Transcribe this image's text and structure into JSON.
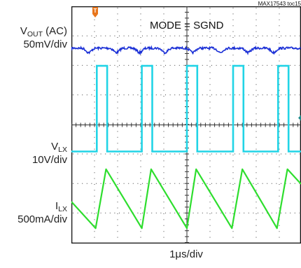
{
  "figure_id": "MAX17543 toc15",
  "mode_label": "MODE = SGND",
  "trigger_marker": "T",
  "time_scale": "1μs/div",
  "channels": {
    "vout": {
      "prefix": "V",
      "sub": "OUT",
      "suffix": " (AC)",
      "scale": "50mV/div",
      "color": "#1a2fd6"
    },
    "vlx": {
      "prefix": "V",
      "sub": "LX",
      "suffix": "",
      "scale": "10V/div",
      "color": "#22d4e6"
    },
    "ilx": {
      "prefix": "I",
      "sub": "LX",
      "suffix": "",
      "scale": "500mA/div",
      "color": "#2ede2e"
    }
  },
  "colors": {
    "trigger": "#e8761c",
    "grid": "#444444",
    "frame": "#111111"
  },
  "chart_data": {
    "type": "line",
    "title": "MODE = SGND",
    "xlabel": "1μs/div",
    "grid": true,
    "x_divisions": 10,
    "y_divisions": 8,
    "series": [
      {
        "name": "VOUT (AC)",
        "unit": "mV",
        "scale_per_div": 50,
        "offset_div": 2.6,
        "ripple_mV": 10,
        "dips_at_div": [
          0.75,
          1.95,
          2.95,
          4.05,
          5.25,
          6.45,
          7.65,
          8.75
        ]
      },
      {
        "name": "VLX",
        "unit": "V",
        "scale_per_div": 10,
        "offset_div": -0.9,
        "high_V": 29,
        "low_V": 0,
        "pulses_div": [
          [
            1.1,
            1.55
          ],
          [
            3.05,
            3.5
          ],
          [
            5.0,
            5.45
          ],
          [
            7.0,
            7.45
          ],
          [
            8.95,
            9.4
          ]
        ]
      },
      {
        "name": "ILX",
        "unit": "mA",
        "scale_per_div": 500,
        "offset_div": -3.5,
        "min_mA": 0,
        "max_mA": 1000,
        "peaks_at_div": [
          1.5,
          3.45,
          5.4,
          7.4,
          9.35
        ],
        "valleys_at_div": [
          1.05,
          3.05,
          5.0,
          6.95,
          8.9
        ]
      }
    ]
  }
}
